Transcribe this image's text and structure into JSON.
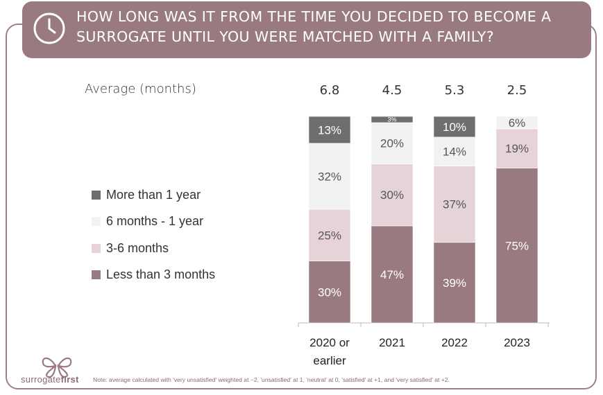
{
  "header": {
    "title": "How long was it from the time you decided to become a surrogate until you were matched with a family?"
  },
  "average_label": "Average (months)",
  "chart_data": {
    "type": "bar",
    "stacked": true,
    "categories": [
      "2020 or earlier",
      "2021",
      "2022",
      "2023"
    ],
    "averages": [
      "6.8",
      "4.5",
      "5.3",
      "2.5"
    ],
    "series": [
      {
        "name": "Less than 3 months",
        "values": [
          30,
          47,
          39,
          75
        ],
        "color": "#9a7a81",
        "label_color": "#ffffff"
      },
      {
        "name": "3-6 months",
        "values": [
          25,
          30,
          37,
          19
        ],
        "color": "#e6d3d7",
        "label_color": "#555555"
      },
      {
        "name": "6 months - 1 year",
        "values": [
          32,
          20,
          14,
          6
        ],
        "color": "#f2f2f2",
        "label_color": "#555555"
      },
      {
        "name": "More than 1 year",
        "values": [
          13,
          3,
          10,
          0
        ],
        "color": "#6e6e6e",
        "label_color": "#ffffff"
      }
    ],
    "legend": [
      "More than 1 year",
      "6 months - 1 year",
      "3-6 months",
      "Less than 3 months"
    ],
    "legend_position": "left"
  },
  "footer": {
    "logo_text_a": "surrogate",
    "logo_text_b": "first",
    "note": "Note:  average calculated with 'very unsatisfied' weighted at −2, 'unsatisfied' at 1, 'neutral' at 0, 'satisfied' at +1, and 'very satisfied' at +2."
  }
}
